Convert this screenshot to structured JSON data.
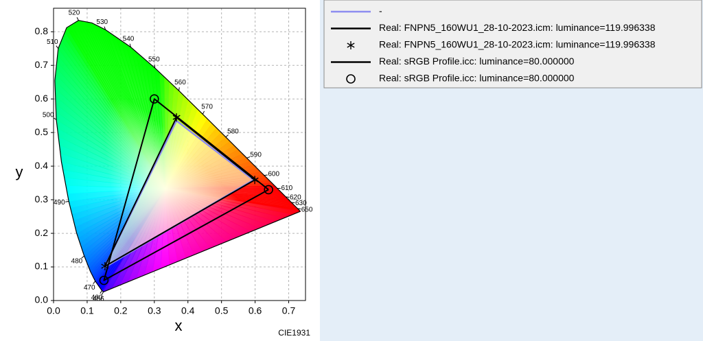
{
  "chart_data": {
    "type": "scatter",
    "xlabel": "x",
    "ylabel": "y",
    "note": "CIE1931",
    "xlim": [
      0,
      0.75
    ],
    "ylim": [
      0,
      0.87
    ],
    "xticks": [
      {
        "value": 0,
        "label": "0.0"
      },
      0.1,
      0.2,
      0.3,
      0.4,
      0.5,
      0.6,
      0.7
    ],
    "yticks": [
      {
        "value": 0,
        "label": "0.0"
      },
      0.1,
      0.2,
      0.3,
      0.4,
      0.5,
      0.6,
      0.7,
      0.8
    ],
    "grid": true,
    "spectral_locus": {
      "color": "#000000",
      "x": [
        0.1484,
        0.144,
        0.1241,
        0.1096,
        0.0913,
        0.0687,
        0.0454,
        0.0235,
        0.0082,
        0.0039,
        0.0139,
        0.0389,
        0.0743,
        0.1142,
        0.1547,
        0.2296,
        0.3016,
        0.3731,
        0.4441,
        0.5125,
        0.5752,
        0.627,
        0.6658,
        0.6915,
        0.7079,
        0.726,
        0.7347
      ],
      "y": [
        0.0257,
        0.0297,
        0.0578,
        0.0868,
        0.1327,
        0.2007,
        0.295,
        0.4127,
        0.5384,
        0.6548,
        0.7502,
        0.812,
        0.8338,
        0.8262,
        0.8059,
        0.7543,
        0.6923,
        0.6245,
        0.5547,
        0.4866,
        0.4242,
        0.3725,
        0.334,
        0.3083,
        0.292,
        0.274,
        0.2653
      ],
      "labels": [
        456,
        460,
        470,
        null,
        480,
        null,
        490,
        null,
        500,
        null,
        510,
        null,
        520,
        null,
        530,
        540,
        550,
        560,
        570,
        580,
        590,
        600,
        610,
        620,
        630,
        650,
        null
      ]
    },
    "series": [
      {
        "name": "-",
        "color": "#8c8cf0",
        "style": "line",
        "fill_color": "#ffffd0",
        "x": [
          0.595,
          0.366,
          0.151,
          0.595
        ],
        "y": [
          0.359,
          0.535,
          0.098,
          0.359
        ]
      },
      {
        "name": "Real: FNPN5_160WU1_28-10-2023.icm: luminance=119.996338",
        "color": "#000000",
        "style": "line",
        "x": [
          0.599,
          0.366,
          0.153,
          0.599
        ],
        "y": [
          0.359,
          0.545,
          0.102,
          0.359
        ]
      },
      {
        "name": "Real: FNPN5_160WU1_28-10-2023.icm: luminance=119.996338",
        "color": "#000000",
        "style": "asterisk",
        "x": [
          0.599,
          0.366,
          0.153
        ],
        "y": [
          0.359,
          0.545,
          0.102
        ]
      },
      {
        "name": "Real: sRGB Profile.icc: luminance=80.000000",
        "color": "#000000",
        "style": "line",
        "x": [
          0.64,
          0.3,
          0.15,
          0.64
        ],
        "y": [
          0.33,
          0.6,
          0.06,
          0.33
        ]
      },
      {
        "name": "Real: sRGB Profile.icc: luminance=80.000000",
        "color": "#000000",
        "style": "circle",
        "x": [
          0.64,
          0.3,
          0.15
        ],
        "y": [
          0.33,
          0.6,
          0.06
        ]
      }
    ]
  }
}
